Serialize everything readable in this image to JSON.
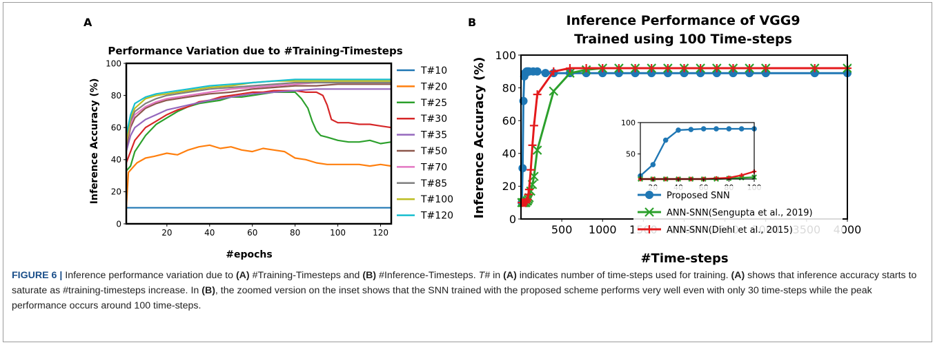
{
  "caption": {
    "figure_label": "FIGURE 6 |",
    "segments": [
      {
        "t": " Inference performance variation due to ",
        "s": "n"
      },
      {
        "t": "(A)",
        "s": "b"
      },
      {
        "t": " #Training-Timesteps and ",
        "s": "n"
      },
      {
        "t": "(B)",
        "s": "b"
      },
      {
        "t": " #Inference-Timesteps. ",
        "s": "n"
      },
      {
        "t": "T#",
        "s": "i"
      },
      {
        "t": " in ",
        "s": "n"
      },
      {
        "t": "(A)",
        "s": "b"
      },
      {
        "t": " indicates number of time-steps used for training. ",
        "s": "n"
      },
      {
        "t": "(A)",
        "s": "b"
      },
      {
        "t": " shows that inference accuracy starts to saturate as #training-timesteps increase. In ",
        "s": "n"
      },
      {
        "t": "(B)",
        "s": "b"
      },
      {
        "t": ", the zoomed version on the inset shows that the SNN trained with the proposed scheme performs very well even with only 30 time-steps while the peak performance occurs around 100 time-steps.",
        "s": "n"
      }
    ]
  },
  "chart_data": [
    {
      "panel_label": "A",
      "type": "line",
      "title": "Performance Variation due to #Training-Timesteps",
      "xlabel": "#epochs",
      "ylabel": "Inference Accuracy (%)",
      "xlim": [
        1,
        125
      ],
      "ylim": [
        0,
        100
      ],
      "xticks": [
        20,
        40,
        60,
        80,
        100,
        120
      ],
      "yticks": [
        0,
        20,
        40,
        60,
        80,
        100
      ],
      "grid": false,
      "legend": "outside-right",
      "series": [
        {
          "name": "T#10",
          "color": "#1f77b4",
          "x": [
            1,
            125
          ],
          "y": [
            10,
            10
          ]
        },
        {
          "name": "T#20",
          "color": "#ff7f0e",
          "x": [
            1,
            2,
            4,
            6,
            10,
            14,
            20,
            25,
            30,
            35,
            40,
            45,
            50,
            55,
            60,
            65,
            70,
            75,
            80,
            85,
            90,
            95,
            100,
            105,
            110,
            115,
            120,
            125
          ],
          "y": [
            10,
            32,
            35,
            38,
            41,
            42,
            44,
            43,
            46,
            48,
            49,
            47,
            48,
            46,
            45,
            47,
            46,
            45,
            41,
            40,
            38,
            37,
            37,
            37,
            37,
            36,
            37,
            36
          ]
        },
        {
          "name": "T#25",
          "color": "#2ca02c",
          "x": [
            1,
            3,
            5,
            10,
            15,
            20,
            25,
            30,
            35,
            40,
            45,
            50,
            55,
            60,
            65,
            70,
            75,
            80,
            83,
            86,
            88,
            90,
            92,
            95,
            100,
            105,
            110,
            115,
            120,
            125
          ],
          "y": [
            33,
            36,
            45,
            55,
            62,
            66,
            70,
            73,
            75,
            76,
            77,
            79,
            79,
            80,
            81,
            82,
            82,
            82,
            78,
            72,
            64,
            58,
            55,
            54,
            52,
            51,
            51,
            52,
            50,
            51
          ]
        },
        {
          "name": "T#30",
          "color": "#d62728",
          "x": [
            1,
            3,
            5,
            10,
            15,
            20,
            25,
            30,
            35,
            40,
            45,
            50,
            55,
            60,
            65,
            70,
            75,
            80,
            85,
            90,
            93,
            95,
            97,
            100,
            105,
            110,
            115,
            120,
            125
          ],
          "y": [
            38,
            45,
            52,
            60,
            64,
            68,
            71,
            73,
            76,
            77,
            79,
            80,
            81,
            82,
            82,
            83,
            83,
            83,
            82,
            82,
            80,
            74,
            65,
            63,
            63,
            62,
            62,
            61,
            60
          ]
        },
        {
          "name": "T#35",
          "color": "#9467bd",
          "x": [
            1,
            3,
            5,
            10,
            15,
            20,
            30,
            40,
            50,
            60,
            70,
            80,
            90,
            100,
            110,
            120,
            125
          ],
          "y": [
            45,
            55,
            60,
            65,
            68,
            71,
            74,
            77,
            79,
            81,
            82,
            83,
            84,
            84,
            84,
            84,
            84
          ]
        },
        {
          "name": "T#50",
          "color": "#8c564b",
          "x": [
            1,
            3,
            5,
            10,
            15,
            20,
            30,
            40,
            50,
            60,
            70,
            80,
            90,
            100,
            110,
            120,
            125
          ],
          "y": [
            48,
            60,
            66,
            72,
            75,
            77,
            79,
            81,
            82,
            84,
            85,
            86,
            86,
            87,
            87,
            87,
            87
          ]
        },
        {
          "name": "T#70",
          "color": "#e377c2",
          "x": [
            1,
            3,
            5,
            10,
            15,
            20,
            30,
            40,
            50,
            60,
            70,
            80,
            90,
            100,
            110,
            120,
            125
          ],
          "y": [
            50,
            62,
            68,
            73,
            76,
            78,
            80,
            82,
            84,
            85,
            86,
            87,
            88,
            88,
            88,
            88,
            88
          ]
        },
        {
          "name": "T#85",
          "color": "#7f7f7f",
          "x": [
            1,
            3,
            5,
            10,
            15,
            20,
            30,
            40,
            50,
            60,
            70,
            80,
            90,
            100,
            110,
            120,
            125
          ],
          "y": [
            52,
            64,
            70,
            75,
            78,
            80,
            82,
            84,
            85,
            86,
            87,
            88,
            88,
            88,
            88,
            88,
            88
          ]
        },
        {
          "name": "T#100",
          "color": "#bcbd22",
          "x": [
            1,
            3,
            5,
            10,
            15,
            20,
            30,
            40,
            50,
            60,
            70,
            80,
            90,
            100,
            110,
            120,
            125
          ],
          "y": [
            50,
            66,
            72,
            78,
            80,
            81,
            83,
            85,
            86,
            88,
            89,
            89,
            89,
            89,
            89,
            89,
            89
          ]
        },
        {
          "name": "T#120",
          "color": "#17becf",
          "x": [
            1,
            3,
            5,
            10,
            15,
            20,
            30,
            40,
            50,
            60,
            70,
            80,
            90,
            100,
            110,
            120,
            125
          ],
          "y": [
            55,
            68,
            75,
            79,
            81,
            82,
            84,
            86,
            87,
            88,
            89,
            90,
            90,
            90,
            90,
            90,
            90
          ]
        }
      ]
    },
    {
      "panel_label": "B",
      "type": "line",
      "title": "Inference Performance of VGG9 Trained using 100 Time-steps",
      "title_lines": [
        "Inference Performance of VGG9",
        "Trained using 100 Time-steps"
      ],
      "xlabel": "#Time-steps",
      "ylabel": "Inference Accuracy (%)",
      "xlim": [
        0,
        4000
      ],
      "ylim": [
        0,
        100
      ],
      "xticks": [
        500,
        1000,
        1500,
        2000,
        2500,
        3000,
        3500,
        4000
      ],
      "yticks": [
        0,
        20,
        40,
        60,
        80,
        100
      ],
      "grid": false,
      "legend": "lower-center",
      "series": [
        {
          "name": "Proposed SNN",
          "color": "#1f77b4",
          "marker": "circle",
          "x": [
            10,
            20,
            30,
            40,
            50,
            60,
            70,
            80,
            90,
            100,
            150,
            200,
            300,
            400,
            600,
            800,
            1000,
            1200,
            1400,
            1600,
            1800,
            2000,
            2200,
            2400,
            2600,
            2800,
            3000,
            3600,
            4000
          ],
          "y": [
            10,
            31,
            72,
            87,
            89,
            89,
            90,
            90,
            90,
            90,
            90,
            90,
            89,
            89,
            89,
            89,
            89,
            89,
            89,
            89,
            89,
            89,
            89,
            89,
            89,
            89,
            89,
            89,
            89
          ]
        },
        {
          "name": "ANN-SNN(Sengupta et al., 2019)",
          "color": "#2ca02c",
          "marker": "x",
          "x": [
            10,
            20,
            30,
            40,
            50,
            60,
            70,
            80,
            90,
            100,
            120,
            140,
            160,
            200,
            400,
            600,
            800,
            1000,
            1200,
            1400,
            1600,
            1800,
            2000,
            2200,
            2400,
            2600,
            2800,
            3000,
            3600,
            4000
          ],
          "y": [
            10,
            10,
            10,
            10,
            10,
            10,
            11,
            11,
            12,
            13,
            17,
            21,
            26,
            42,
            78,
            89,
            91,
            92,
            92,
            92,
            92,
            92,
            92,
            92,
            92,
            92,
            92,
            92,
            92,
            92
          ]
        },
        {
          "name": "ANN-SNN(Diehl et al., 2015)",
          "color": "#e41a1c",
          "marker": "plus",
          "x": [
            10,
            20,
            30,
            40,
            50,
            60,
            70,
            80,
            90,
            100,
            120,
            140,
            160,
            200,
            400,
            600,
            800,
            1000,
            1200,
            1400,
            1600,
            1800,
            2000,
            2200,
            2400,
            2600,
            2800,
            3000,
            3600,
            4000
          ],
          "y": [
            10,
            10,
            10,
            10,
            10,
            10,
            11,
            12,
            15,
            18,
            30,
            45,
            57,
            76,
            90,
            92,
            92,
            92,
            92,
            92,
            92,
            92,
            92,
            92,
            92,
            92,
            92,
            92,
            92,
            92
          ]
        }
      ],
      "inset": {
        "xlim": [
          10,
          100
        ],
        "ylim": [
          10,
          100
        ],
        "xticks": [
          20,
          40,
          60,
          80,
          100
        ],
        "yticks": [
          50,
          100
        ],
        "series": [
          {
            "name": "Proposed SNN",
            "color": "#1f77b4",
            "marker": "circle",
            "x": [
              10,
              20,
              30,
              40,
              50,
              60,
              70,
              80,
              90,
              100
            ],
            "y": [
              15,
              33,
              72,
              88,
              89,
              90,
              90,
              90,
              90,
              90
            ]
          },
          {
            "name": "ANN-SNN(Sengupta et al., 2019)",
            "color": "#2ca02c",
            "marker": "x",
            "x": [
              10,
              20,
              30,
              40,
              50,
              60,
              70,
              80,
              90,
              100
            ],
            "y": [
              10,
              10,
              10,
              10,
              10,
              10,
              10,
              11,
              12,
              13
            ]
          },
          {
            "name": "ANN-SNN(Diehl et al., 2015)",
            "color": "#e41a1c",
            "marker": "plus",
            "x": [
              10,
              20,
              30,
              40,
              50,
              60,
              70,
              80,
              90,
              100
            ],
            "y": [
              10,
              10,
              10,
              10,
              10,
              10,
              11,
              12,
              16,
              22
            ]
          }
        ]
      }
    }
  ]
}
